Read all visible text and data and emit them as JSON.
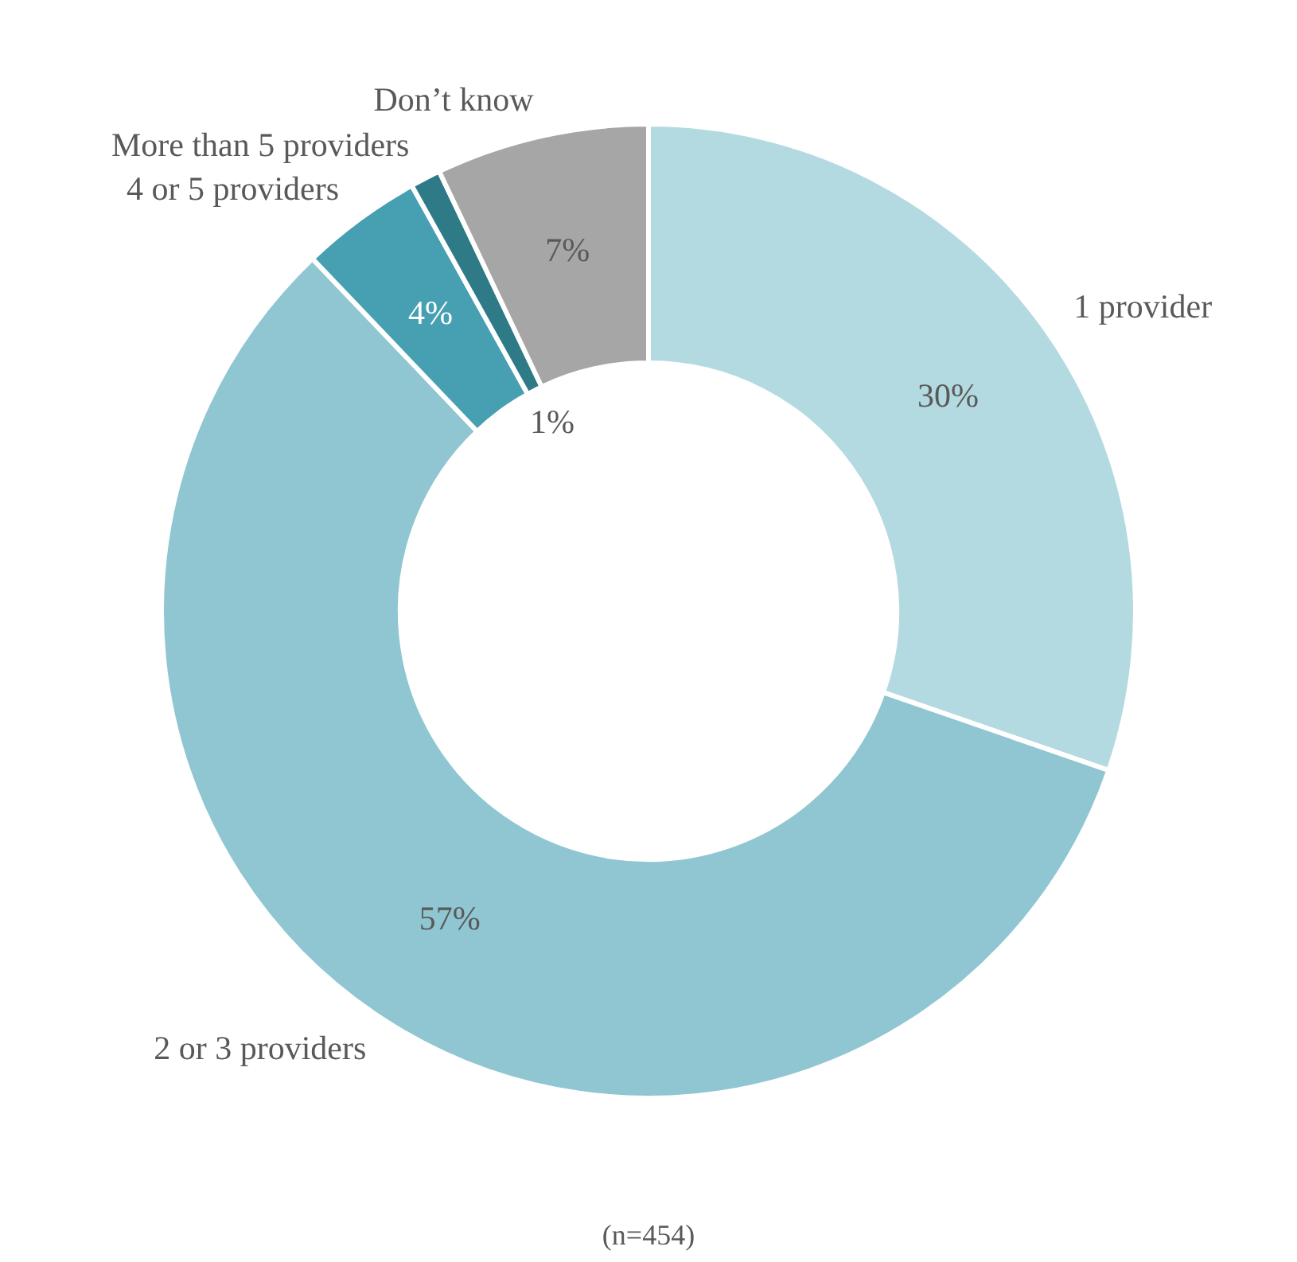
{
  "chart_data": {
    "type": "donut",
    "categories": [
      "1 provider",
      "2 or 3 providers",
      "4 or 5 providers",
      "More than 5 providers",
      "Don’t know"
    ],
    "values": [
      30,
      57,
      4,
      1,
      7
    ],
    "value_labels": [
      "30%",
      "57%",
      "4%",
      "1%",
      "7%"
    ],
    "colors": [
      "#b3dae0",
      "#8fc6d2",
      "#47a0b2",
      "#2e7a87",
      "#a6a6a6"
    ],
    "legend": false,
    "annotations": [
      "(n=454)"
    ]
  }
}
